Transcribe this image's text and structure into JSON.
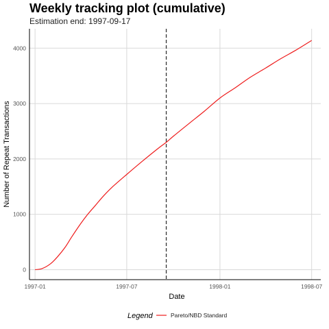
{
  "chart_data": {
    "type": "line",
    "title": "Weekly tracking plot (cumulative)",
    "subtitle": "Estimation end: 1997-09-17",
    "xlabel": "Date",
    "ylabel": "Number of Repeat Transactions",
    "x_ticks": [
      "1997-01",
      "1997-07",
      "1998-01",
      "1998-07"
    ],
    "y_ticks": [
      0,
      1000,
      2000,
      3000,
      4000
    ],
    "ylim": [
      -180,
      4350
    ],
    "xlim": [
      "1996-12-21",
      "1998-07-19"
    ],
    "grid": true,
    "legend_position": "bottom",
    "legend_title": "Legend",
    "estimation_end": "1997-09-17",
    "series": [
      {
        "name": "Pareto/NBD Standard",
        "color": "#ee1c1c",
        "points": [
          [
            "1997-01-01",
            0
          ],
          [
            "1997-01-15",
            20
          ],
          [
            "1997-02-01",
            110
          ],
          [
            "1997-02-15",
            240
          ],
          [
            "1997-03-01",
            400
          ],
          [
            "1997-03-15",
            600
          ],
          [
            "1997-04-01",
            830
          ],
          [
            "1997-04-15",
            1000
          ],
          [
            "1997-05-01",
            1170
          ],
          [
            "1997-05-15",
            1320
          ],
          [
            "1997-06-01",
            1480
          ],
          [
            "1997-07-01",
            1720
          ],
          [
            "1997-08-01",
            1960
          ],
          [
            "1997-09-01",
            2190
          ],
          [
            "1997-09-17",
            2300
          ],
          [
            "1997-10-01",
            2410
          ],
          [
            "1997-11-01",
            2640
          ],
          [
            "1997-12-01",
            2860
          ],
          [
            "1998-01-01",
            3100
          ],
          [
            "1998-02-01",
            3290
          ],
          [
            "1998-03-01",
            3470
          ],
          [
            "1998-04-01",
            3640
          ],
          [
            "1998-05-01",
            3810
          ],
          [
            "1998-06-01",
            3970
          ],
          [
            "1998-07-01",
            4140
          ]
        ]
      }
    ]
  }
}
